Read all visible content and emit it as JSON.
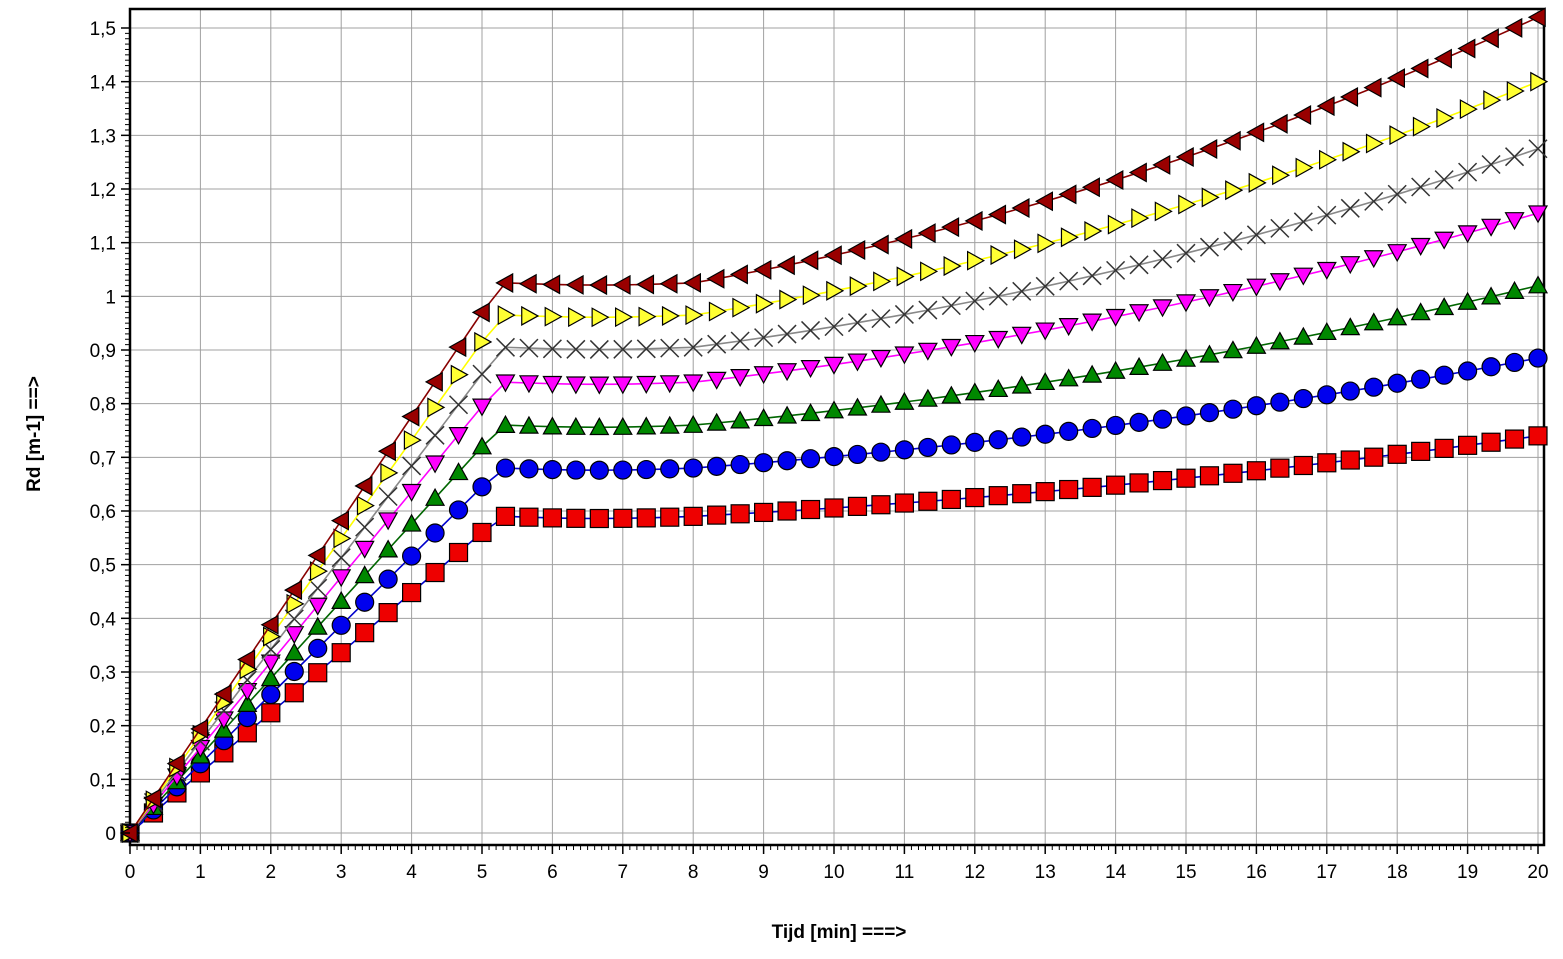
{
  "chart_data": {
    "type": "line",
    "title": "",
    "xlabel": "Tijd [min] ===>",
    "ylabel": "Rd [m-1] ==>",
    "xlim": [
      0,
      20
    ],
    "ylim": [
      0,
      1.5
    ],
    "grid": true,
    "x_ticks": [
      "0",
      "1",
      "2",
      "3",
      "4",
      "5",
      "6",
      "7",
      "8",
      "9",
      "10",
      "11",
      "12",
      "13",
      "14",
      "15",
      "16",
      "17",
      "18",
      "19",
      "20"
    ],
    "y_ticks": [
      "0",
      "0,1",
      "0,2",
      "0,3",
      "0,4",
      "0,5",
      "0,6",
      "0,7",
      "0,8",
      "0,9",
      "1",
      "1,1",
      "1,2",
      "1,3",
      "1,4",
      "1,5"
    ],
    "series": [
      {
        "color": "#ee0000",
        "marker": "square",
        "line_color": "#0000cc",
        "slope": 0.112,
        "plateau": 0.59,
        "end": 0.74
      },
      {
        "color": "#0000ee",
        "marker": "circle",
        "line_color": "#0000cc",
        "slope": 0.129,
        "plateau": 0.68,
        "end": 0.885
      },
      {
        "color": "#008800",
        "marker": "triangle-up",
        "line_color": "#006600",
        "slope": 0.144,
        "plateau": 0.76,
        "end": 1.02
      },
      {
        "color": "#ff00ff",
        "marker": "triangle-down",
        "line_color": "#ff00ff",
        "slope": 0.159,
        "plateau": 0.84,
        "end": 1.155
      },
      {
        "color": "#333333",
        "marker": "x",
        "line_color": "#888888",
        "slope": 0.171,
        "plateau": 0.905,
        "end": 1.275
      },
      {
        "color": "#ffff33",
        "marker": "triangle-right",
        "line_color": "#ffff00",
        "slope": 0.183,
        "plateau": 0.965,
        "end": 1.4
      },
      {
        "color": "#990000",
        "marker": "triangle-left",
        "line_color": "#880000",
        "slope": 0.194,
        "plateau": 1.025,
        "end": 1.52
      }
    ]
  }
}
